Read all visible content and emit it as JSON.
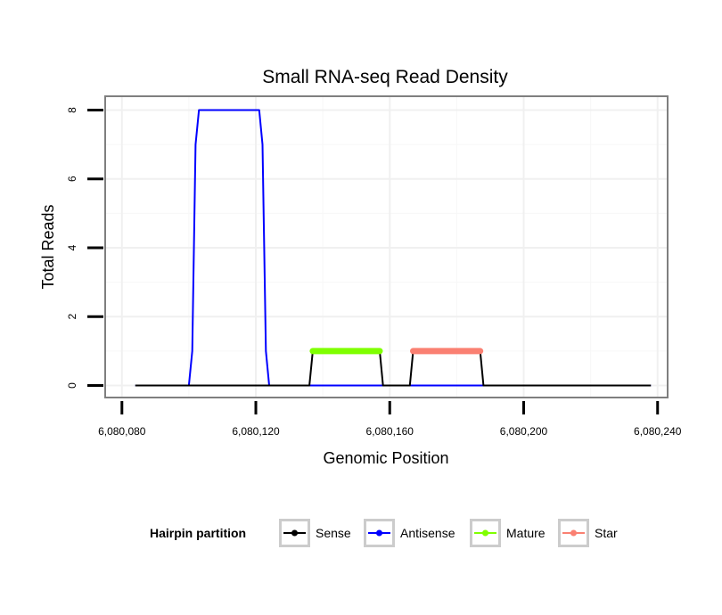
{
  "chart_data": {
    "type": "line",
    "title": "Small RNA-seq Read Density",
    "xlabel": "Genomic Position",
    "ylabel": "Total Reads",
    "xlim": [
      6080075,
      6080243
    ],
    "ylim": [
      -0.35,
      8.4
    ],
    "x_ticks": [
      6080080,
      6080120,
      6080160,
      6080200,
      6080240
    ],
    "x_tick_labels": [
      "6,080,080",
      "6,080,120",
      "6,080,160",
      "6,080,200",
      "6,080,240"
    ],
    "y_ticks": [
      0,
      2,
      4,
      6,
      8
    ],
    "y_tick_labels": [
      "0",
      "2",
      "4",
      "6",
      "8"
    ],
    "grid": true,
    "legend_position": "bottom",
    "legend_title": "Hairpin partition",
    "series": [
      {
        "name": "Sense",
        "color": "#000000",
        "x": [
          6080084,
          6080136,
          6080137,
          6080157,
          6080158,
          6080166,
          6080167,
          6080187,
          6080188,
          6080238
        ],
        "y": [
          0,
          0,
          1,
          1,
          0,
          0,
          1,
          1,
          0,
          0
        ]
      },
      {
        "name": "Antisense",
        "color": "#0000FF",
        "x": [
          6080084,
          6080100,
          6080101,
          6080102,
          6080103,
          6080121,
          6080122,
          6080123,
          6080124,
          6080238
        ],
        "y": [
          0,
          0,
          1,
          7,
          8,
          8,
          7,
          1,
          0,
          0
        ]
      },
      {
        "name": "Mature",
        "color": "#7FFF00",
        "x": [
          6080137,
          6080157
        ],
        "y": [
          1,
          1
        ]
      },
      {
        "name": "Star",
        "color": "#FA8072",
        "x": [
          6080167,
          6080187
        ],
        "y": [
          1,
          1
        ]
      }
    ]
  }
}
